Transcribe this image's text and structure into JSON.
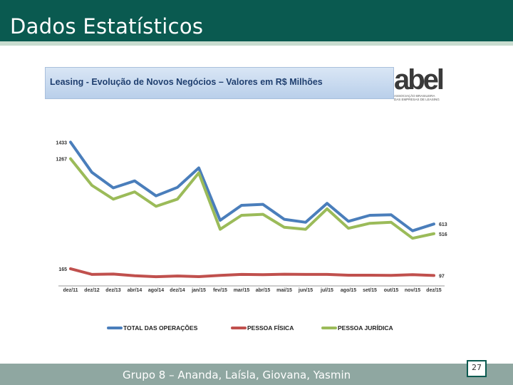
{
  "slide": {
    "title": "Dados Estatísticos",
    "footer": "Grupo 8 – Ananda, Laísla, Giovana, Yasmin",
    "page_number": "27"
  },
  "logo": {
    "name": "abel",
    "subtitle_line1": "ASSOCIAÇÃO BRASILEIRA",
    "subtitle_line2": "DAS EMPRESAS DE LEASING"
  },
  "colors": {
    "header_bg": "#0a5a50",
    "total": "#4a7ebb",
    "pf": "#c0504d",
    "pj": "#9bbb59"
  },
  "chart_data": {
    "type": "line",
    "title": "Leasing - Evolução de Novos Negócios – Valores em R$ Milhões",
    "categories": [
      "dez/11",
      "dez/12",
      "dez/13",
      "abr/14",
      "ago/14",
      "dez/14",
      "jan/15",
      "fev/15",
      "mar/15",
      "abr/15",
      "mai/15",
      "jun/15",
      "jul/15",
      "ago/15",
      "set/15",
      "out/15",
      "nov/15",
      "dez/15"
    ],
    "ylim": [
      0,
      1500
    ],
    "series": [
      {
        "name": "TOTAL DAS OPERAÇÕES",
        "color": "#4a7ebb",
        "values": [
          1433,
          1130,
          975,
          1045,
          895,
          980,
          1175,
          650,
          800,
          810,
          660,
          630,
          820,
          640,
          700,
          705,
          545,
          613
        ],
        "start_label": "1433",
        "end_label": "613"
      },
      {
        "name": "PESSOA FÍSICA",
        "color": "#c0504d",
        "values": [
          165,
          108,
          112,
          95,
          85,
          92,
          86,
          98,
          108,
          105,
          110,
          108,
          108,
          100,
          100,
          98,
          105,
          97
        ],
        "start_label": "165",
        "end_label": "97"
      },
      {
        "name": "PESSOA JURÍDICA",
        "color": "#9bbb59",
        "values": [
          1267,
          1000,
          862,
          935,
          790,
          862,
          1125,
          560,
          700,
          710,
          580,
          560,
          765,
          570,
          620,
          630,
          470,
          516
        ],
        "start_label": "1267",
        "end_label": "516"
      }
    ]
  }
}
